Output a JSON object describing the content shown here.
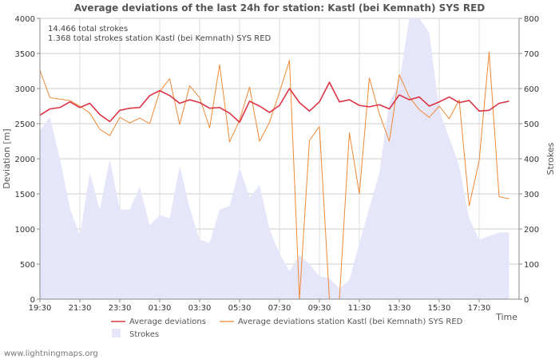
{
  "chart_data": {
    "type": "line",
    "title": "Average deviations of the last 24h for station: Kastl (bei Kemnath) SYS RED",
    "xlabel": "Time",
    "ylabel_left": "Deviation  [m]",
    "ylabel_right": "Strokes",
    "ylim_left": [
      0,
      4000
    ],
    "ylim_right": [
      0,
      800
    ],
    "yticks_left": [
      0,
      500,
      1000,
      1500,
      2000,
      2500,
      3000,
      3500,
      4000
    ],
    "yticks_right": [
      0,
      100,
      200,
      300,
      400,
      500,
      600,
      700,
      800
    ],
    "xlim": [
      0,
      24
    ],
    "xticks": [
      {
        "x": 0,
        "label": "19:30"
      },
      {
        "x": 2,
        "label": "21:30"
      },
      {
        "x": 4,
        "label": "23:30"
      },
      {
        "x": 6,
        "label": "01:30"
      },
      {
        "x": 8,
        "label": "03:30"
      },
      {
        "x": 10,
        "label": "05:30"
      },
      {
        "x": 12,
        "label": "07:30"
      },
      {
        "x": 14,
        "label": "09:30"
      },
      {
        "x": 16,
        "label": "11:30"
      },
      {
        "x": 18,
        "label": "13:30"
      },
      {
        "x": 20,
        "label": "15:30"
      },
      {
        "x": 22,
        "label": "17:30"
      }
    ],
    "info_lines": [
      "14.466 total strokes",
      "1.368 total strokes station Kastl (bei Kemnath) SYS RED"
    ],
    "legend": {
      "avg": "Average deviations",
      "station": "Average deviations station Kastl (bei Kemnath) SYS RED",
      "strokes": "Strokes"
    },
    "series": [
      {
        "name": "Average deviations",
        "axis": "left",
        "color": "#dd3344",
        "values": [
          [
            0,
            2620
          ],
          [
            0.5,
            2710
          ],
          [
            1,
            2730
          ],
          [
            1.5,
            2810
          ],
          [
            2,
            2730
          ],
          [
            2.5,
            2790
          ],
          [
            3,
            2630
          ],
          [
            3.5,
            2530
          ],
          [
            4,
            2690
          ],
          [
            4.5,
            2720
          ],
          [
            5,
            2730
          ],
          [
            5.5,
            2900
          ],
          [
            6,
            2970
          ],
          [
            6.5,
            2900
          ],
          [
            7,
            2790
          ],
          [
            7.5,
            2840
          ],
          [
            8,
            2800
          ],
          [
            8.5,
            2720
          ],
          [
            9,
            2730
          ],
          [
            9.5,
            2650
          ],
          [
            10,
            2520
          ],
          [
            10.5,
            2820
          ],
          [
            11,
            2750
          ],
          [
            11.5,
            2660
          ],
          [
            12,
            2760
          ],
          [
            12.5,
            3000
          ],
          [
            13,
            2800
          ],
          [
            13.5,
            2680
          ],
          [
            14,
            2810
          ],
          [
            14.5,
            3090
          ],
          [
            15,
            2810
          ],
          [
            15.5,
            2840
          ],
          [
            16,
            2760
          ],
          [
            16.5,
            2740
          ],
          [
            17,
            2770
          ],
          [
            17.5,
            2710
          ],
          [
            18,
            2910
          ],
          [
            18.5,
            2840
          ],
          [
            19,
            2880
          ],
          [
            19.5,
            2750
          ],
          [
            20,
            2810
          ],
          [
            20.5,
            2880
          ],
          [
            21,
            2800
          ],
          [
            21.5,
            2830
          ],
          [
            22,
            2680
          ],
          [
            22.5,
            2690
          ],
          [
            23,
            2790
          ],
          [
            23.5,
            2820
          ]
        ]
      },
      {
        "name": "Average deviations station Kastl (bei Kemnath) SYS RED",
        "axis": "left",
        "color": "#ee8833",
        "values": [
          [
            0,
            3260
          ],
          [
            0.5,
            2870
          ],
          [
            1,
            2850
          ],
          [
            1.5,
            2830
          ],
          [
            2,
            2750
          ],
          [
            2.5,
            2650
          ],
          [
            3,
            2420
          ],
          [
            3.5,
            2330
          ],
          [
            4,
            2590
          ],
          [
            4.5,
            2510
          ],
          [
            5,
            2580
          ],
          [
            5.5,
            2500
          ],
          [
            6,
            2960
          ],
          [
            6.5,
            3140
          ],
          [
            7,
            2490
          ],
          [
            7.5,
            3040
          ],
          [
            8,
            2870
          ],
          [
            8.5,
            2440
          ],
          [
            9,
            3340
          ],
          [
            9.5,
            2240
          ],
          [
            10,
            2550
          ],
          [
            10.5,
            3020
          ],
          [
            11,
            2250
          ],
          [
            11.5,
            2520
          ],
          [
            12,
            2950
          ],
          [
            12.5,
            3400
          ],
          [
            13,
            0
          ],
          [
            13.5,
            2260
          ],
          [
            14,
            2460
          ],
          [
            14.5,
            0
          ],
          [
            15,
            0
          ],
          [
            15.5,
            2370
          ],
          [
            16,
            1500
          ],
          [
            16.5,
            3150
          ],
          [
            17,
            2640
          ],
          [
            17.5,
            2250
          ],
          [
            18,
            3200
          ],
          [
            18.5,
            2880
          ],
          [
            19,
            2700
          ],
          [
            19.5,
            2590
          ],
          [
            20,
            2750
          ],
          [
            20.5,
            2570
          ],
          [
            21,
            2840
          ],
          [
            21.5,
            1330
          ],
          [
            22,
            1970
          ],
          [
            22.5,
            3520
          ],
          [
            23,
            1460
          ],
          [
            23.5,
            1430
          ]
        ]
      },
      {
        "name": "Strokes",
        "axis": "right",
        "type": "area",
        "color": "#e6e6fa",
        "values": [
          [
            0,
            480
          ],
          [
            0.5,
            520
          ],
          [
            1,
            400
          ],
          [
            1.5,
            260
          ],
          [
            2,
            180
          ],
          [
            2.5,
            360
          ],
          [
            3,
            255
          ],
          [
            3.5,
            400
          ],
          [
            4,
            255
          ],
          [
            4.5,
            255
          ],
          [
            5,
            320
          ],
          [
            5.5,
            210
          ],
          [
            6,
            240
          ],
          [
            6.5,
            230
          ],
          [
            7,
            380
          ],
          [
            7.5,
            260
          ],
          [
            8,
            170
          ],
          [
            8.5,
            160
          ],
          [
            9,
            255
          ],
          [
            9.5,
            265
          ],
          [
            10,
            375
          ],
          [
            10.5,
            290
          ],
          [
            11,
            325
          ],
          [
            11.5,
            200
          ],
          [
            12,
            130
          ],
          [
            12.5,
            80
          ],
          [
            13,
            125
          ],
          [
            13.5,
            100
          ],
          [
            14,
            65
          ],
          [
            14.5,
            60
          ],
          [
            15,
            30
          ],
          [
            15.5,
            55
          ],
          [
            16,
            160
          ],
          [
            16.5,
            260
          ],
          [
            17,
            360
          ],
          [
            17.5,
            560
          ],
          [
            18,
            620
          ],
          [
            18.5,
            800
          ],
          [
            19,
            800
          ],
          [
            19.5,
            760
          ],
          [
            20,
            540
          ],
          [
            20.5,
            460
          ],
          [
            21,
            380
          ],
          [
            21.5,
            230
          ],
          [
            22,
            170
          ],
          [
            22.5,
            180
          ],
          [
            23,
            190
          ],
          [
            23.5,
            190
          ]
        ]
      }
    ]
  },
  "footer": "www.lightningmaps.org"
}
